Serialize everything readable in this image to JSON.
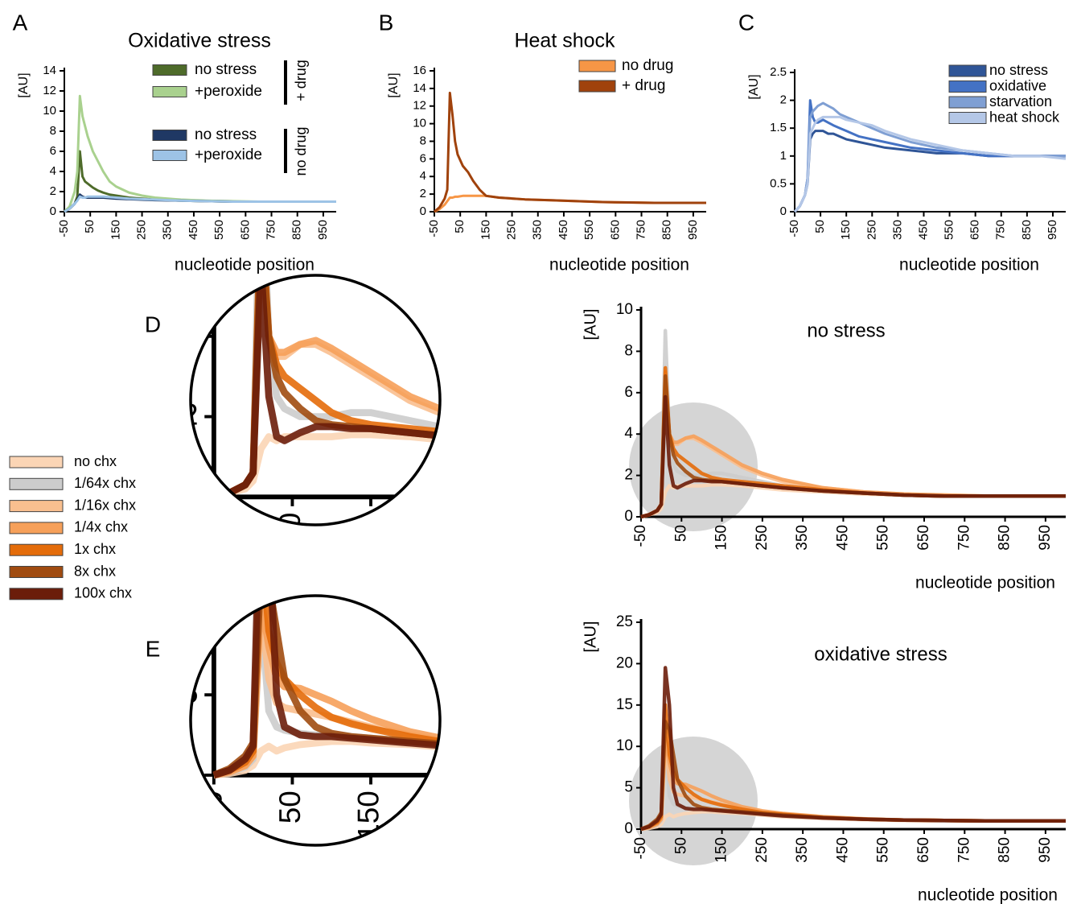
{
  "chart_data": [
    {
      "type": "line",
      "panel": "A",
      "title": "Oxidative stress",
      "ylabel": "[AU]",
      "xlabel": "nucleotide position",
      "x": [
        -50,
        -30,
        -10,
        0,
        10,
        20,
        30,
        40,
        60,
        80,
        100,
        125,
        150,
        200,
        250,
        300,
        400,
        500,
        600,
        700,
        800,
        900,
        1000
      ],
      "xlim": [
        -50,
        1000
      ],
      "xticks": [
        -50,
        50,
        150,
        250,
        350,
        450,
        550,
        650,
        750,
        850,
        950
      ],
      "ylim": [
        0,
        14
      ],
      "yticks": [
        0,
        2,
        4,
        6,
        8,
        10,
        12,
        14
      ],
      "legend_groups": [
        "+ drug",
        "no drug"
      ],
      "series": [
        {
          "name": "no stress",
          "color": "#4e6b2a",
          "values": [
            0,
            0.3,
            0.8,
            1.5,
            6,
            3.5,
            3,
            2.8,
            2.4,
            2.1,
            1.9,
            1.7,
            1.6,
            1.4,
            1.3,
            1.2,
            1.1,
            1.05,
            1,
            1,
            1,
            1,
            1
          ]
        },
        {
          "name": "+peroxide",
          "color": "#a9d18e",
          "values": [
            0,
            0.5,
            2,
            4,
            11.5,
            9.5,
            8.5,
            7.5,
            6,
            5,
            4,
            3,
            2.5,
            1.9,
            1.6,
            1.4,
            1.2,
            1.1,
            1.05,
            1,
            1,
            1,
            1
          ]
        },
        {
          "name": "no stress",
          "color": "#1f3864",
          "values": [
            0,
            0.3,
            0.8,
            1.2,
            1.7,
            1.5,
            1.4,
            1.4,
            1.4,
            1.4,
            1.4,
            1.35,
            1.3,
            1.25,
            1.2,
            1.15,
            1.1,
            1.05,
            1,
            1,
            1,
            1,
            1
          ]
        },
        {
          "name": "+peroxide",
          "color": "#9dc3e6",
          "values": [
            0,
            0.3,
            0.8,
            1.1,
            1.5,
            1.4,
            1.4,
            1.5,
            1.5,
            1.5,
            1.5,
            1.45,
            1.4,
            1.3,
            1.25,
            1.2,
            1.1,
            1.05,
            1,
            1,
            1,
            1,
            1
          ]
        }
      ]
    },
    {
      "type": "line",
      "panel": "B",
      "title": "Heat shock",
      "ylabel": "[AU]",
      "xlabel": "nucleotide position",
      "x": [
        -50,
        -30,
        -10,
        0,
        10,
        20,
        30,
        40,
        60,
        80,
        100,
        125,
        150,
        200,
        250,
        300,
        400,
        500,
        600,
        700,
        800,
        900,
        1000
      ],
      "xlim": [
        -50,
        1000
      ],
      "xticks": [
        -50,
        50,
        150,
        250,
        350,
        450,
        550,
        650,
        750,
        850,
        950
      ],
      "ylim": [
        0,
        16
      ],
      "yticks": [
        0,
        2,
        4,
        6,
        8,
        10,
        12,
        14,
        16
      ],
      "series": [
        {
          "name": "no drug",
          "color": "#f79646",
          "values": [
            0,
            0.3,
            0.8,
            1.2,
            1.6,
            1.6,
            1.7,
            1.7,
            1.8,
            1.8,
            1.8,
            1.8,
            1.8,
            1.6,
            1.5,
            1.4,
            1.3,
            1.2,
            1.1,
            1.05,
            1,
            1,
            1
          ]
        },
        {
          "name": "+ drug",
          "color": "#a0420c",
          "values": [
            0,
            0.5,
            1.5,
            2.5,
            13.5,
            11,
            8,
            6.5,
            5.2,
            4.5,
            3.5,
            2.5,
            1.8,
            1.6,
            1.5,
            1.4,
            1.3,
            1.2,
            1.1,
            1.05,
            1,
            1,
            1
          ]
        }
      ]
    },
    {
      "type": "line",
      "panel": "C",
      "ylabel": "[AU]",
      "xlabel": "nucleotide position",
      "x": [
        -50,
        -30,
        -10,
        0,
        10,
        20,
        30,
        40,
        60,
        80,
        100,
        125,
        150,
        200,
        250,
        300,
        400,
        500,
        600,
        700,
        800,
        900,
        1000
      ],
      "xlim": [
        -50,
        1000
      ],
      "xticks": [
        -50,
        50,
        150,
        250,
        350,
        450,
        550,
        650,
        750,
        850,
        950
      ],
      "ylim": [
        0,
        2.5
      ],
      "yticks": [
        0,
        0.5,
        1,
        1.5,
        2,
        2.5
      ],
      "series": [
        {
          "name": "no stress",
          "color": "#2f5597",
          "values": [
            0,
            0.1,
            0.3,
            0.5,
            1.3,
            1.4,
            1.45,
            1.45,
            1.45,
            1.4,
            1.4,
            1.35,
            1.3,
            1.25,
            1.2,
            1.15,
            1.1,
            1.05,
            1.05,
            1,
            1,
            1,
            1
          ]
        },
        {
          "name": "oxidative",
          "color": "#4472c4",
          "values": [
            0,
            0.1,
            0.3,
            0.6,
            2,
            1.7,
            1.6,
            1.6,
            1.65,
            1.6,
            1.55,
            1.5,
            1.45,
            1.35,
            1.3,
            1.25,
            1.15,
            1.1,
            1.05,
            1,
            1,
            1,
            1
          ]
        },
        {
          "name": "starvation",
          "color": "#7f9fd3",
          "values": [
            0,
            0.1,
            0.3,
            0.6,
            1.7,
            1.8,
            1.85,
            1.9,
            1.95,
            1.9,
            1.85,
            1.75,
            1.7,
            1.6,
            1.5,
            1.4,
            1.25,
            1.15,
            1.1,
            1.05,
            1,
            1,
            1
          ]
        },
        {
          "name": "heat shock",
          "color": "#b4c7e7",
          "values": [
            0,
            0.1,
            0.3,
            0.5,
            1.4,
            1.5,
            1.6,
            1.65,
            1.7,
            1.7,
            1.7,
            1.7,
            1.65,
            1.6,
            1.55,
            1.45,
            1.3,
            1.2,
            1.1,
            1.05,
            1,
            1,
            0.95
          ]
        }
      ]
    },
    {
      "type": "line",
      "panel": "D",
      "title": "no stress",
      "ylabel": "[AU]",
      "xlabel": "nucleotide position",
      "x": [
        -50,
        -30,
        -10,
        0,
        10,
        20,
        30,
        40,
        60,
        80,
        100,
        125,
        150,
        200,
        250,
        300,
        400,
        500,
        600,
        700,
        800,
        900,
        1000
      ],
      "xlim": [
        -50,
        1000
      ],
      "xticks": [
        -50,
        50,
        150,
        250,
        350,
        450,
        550,
        650,
        750,
        850,
        950
      ],
      "ylim": [
        0,
        10
      ],
      "yticks": [
        0,
        2,
        4,
        6,
        8,
        10
      ],
      "series": [
        {
          "name": "no chx",
          "color": "#fbd5b5",
          "values": [
            0,
            0.1,
            0.2,
            0.4,
            1.2,
            1.5,
            1.4,
            1.5,
            1.5,
            1.5,
            1.5,
            1.55,
            1.55,
            1.5,
            1.4,
            1.3,
            1.2,
            1.1,
            1.05,
            1,
            1,
            1,
            1
          ]
        },
        {
          "name": "1/64x chx",
          "color": "#cccccc",
          "values": [
            0,
            0.1,
            0.3,
            0.6,
            9,
            4,
            2.5,
            2.2,
            2,
            2,
            2,
            2.1,
            2.1,
            1.9,
            1.7,
            1.5,
            1.3,
            1.15,
            1.05,
            1,
            1,
            1,
            1
          ]
        },
        {
          "name": "1/16x chx",
          "color": "#f9bf8f",
          "values": [
            0,
            0.1,
            0.3,
            0.6,
            6.5,
            4,
            3.5,
            3.5,
            3.8,
            3.8,
            3.6,
            3.3,
            3,
            2.4,
            2,
            1.7,
            1.4,
            1.2,
            1.1,
            1.05,
            1,
            1,
            1
          ]
        },
        {
          "name": "1/4x chx",
          "color": "#f6a05a",
          "values": [
            0,
            0.1,
            0.3,
            0.6,
            7,
            4,
            3.6,
            3.6,
            3.8,
            3.9,
            3.7,
            3.4,
            3.1,
            2.5,
            2.1,
            1.8,
            1.4,
            1.2,
            1.1,
            1.05,
            1,
            1,
            1
          ]
        },
        {
          "name": "1x chx",
          "color": "#e46c0a",
          "values": [
            0,
            0.1,
            0.3,
            0.6,
            7.2,
            4,
            3.3,
            3,
            2.7,
            2.4,
            2.1,
            1.9,
            1.8,
            1.7,
            1.6,
            1.5,
            1.3,
            1.15,
            1.05,
            1,
            1,
            1,
            1
          ]
        },
        {
          "name": "8x chx",
          "color": "#a04b10",
          "values": [
            0,
            0.1,
            0.3,
            0.6,
            6.8,
            4,
            3,
            2.6,
            2.2,
            1.9,
            1.8,
            1.75,
            1.7,
            1.6,
            1.5,
            1.4,
            1.25,
            1.15,
            1.05,
            1,
            1,
            1,
            1
          ]
        },
        {
          "name": "100x chx",
          "color": "#6b1d0a",
          "values": [
            0,
            0.1,
            0.3,
            0.6,
            5.8,
            2.5,
            1.5,
            1.4,
            1.6,
            1.75,
            1.75,
            1.7,
            1.7,
            1.6,
            1.5,
            1.4,
            1.25,
            1.15,
            1.05,
            1,
            1,
            1,
            1
          ]
        }
      ]
    },
    {
      "type": "line",
      "panel": "E",
      "title": "oxidative stress",
      "ylabel": "[AU]",
      "xlabel": "nucleotide position",
      "x": [
        -50,
        -30,
        -10,
        0,
        10,
        20,
        30,
        40,
        60,
        80,
        100,
        125,
        150,
        200,
        250,
        300,
        400,
        500,
        600,
        700,
        800,
        900,
        1000
      ],
      "xlim": [
        -50,
        1000
      ],
      "xticks": [
        -50,
        50,
        150,
        250,
        350,
        450,
        550,
        650,
        750,
        850,
        950
      ],
      "ylim": [
        0,
        25
      ],
      "yticks": [
        0,
        5,
        10,
        15,
        20,
        25
      ],
      "series": [
        {
          "color": "#fbd5b5",
          "values": [
            0,
            0.1,
            0.3,
            0.6,
            1.5,
            1.8,
            1.5,
            1.7,
            1.9,
            2,
            2.1,
            2.1,
            2,
            1.9,
            1.7,
            1.5,
            1.3,
            1.15,
            1.05,
            1,
            1,
            1,
            1
          ]
        },
        {
          "color": "#cccccc",
          "values": [
            0,
            0.2,
            0.5,
            1,
            10,
            4,
            3,
            2.8,
            2.6,
            2.5,
            2.5,
            2.4,
            2.3,
            2.1,
            1.9,
            1.6,
            1.35,
            1.2,
            1.1,
            1,
            1,
            1,
            1
          ]
        },
        {
          "color": "#f9bf8f",
          "values": [
            0,
            0.2,
            0.6,
            1.2,
            10.5,
            6,
            4.5,
            4.2,
            4,
            3.8,
            3.6,
            3.3,
            3,
            2.5,
            2.1,
            1.8,
            1.4,
            1.2,
            1.1,
            1.05,
            1,
            1,
            1
          ]
        },
        {
          "color": "#f6a05a",
          "values": [
            0,
            0.2,
            0.6,
            1.2,
            11,
            8,
            6,
            5.5,
            5.4,
            5,
            4.6,
            4,
            3.5,
            2.7,
            2.2,
            1.9,
            1.5,
            1.25,
            1.1,
            1.05,
            1,
            1,
            1
          ]
        },
        {
          "color": "#e46c0a",
          "values": [
            0,
            0.3,
            0.8,
            1.5,
            15,
            9,
            7,
            6,
            5,
            4.2,
            3.6,
            3.2,
            2.9,
            2.4,
            2,
            1.8,
            1.4,
            1.2,
            1.1,
            1.05,
            1,
            1,
            1
          ]
        },
        {
          "color": "#a04b10",
          "values": [
            0,
            0.4,
            1.2,
            2,
            13,
            12,
            9,
            6,
            4,
            3,
            2.6,
            2.4,
            2.3,
            2.1,
            1.9,
            1.7,
            1.4,
            1.2,
            1.1,
            1.05,
            1,
            1,
            1
          ]
        },
        {
          "color": "#6b1d0a",
          "values": [
            0,
            0.3,
            1,
            1.8,
            19.5,
            15,
            5,
            3,
            2.5,
            2.4,
            2.4,
            2.3,
            2.2,
            2,
            1.8,
            1.6,
            1.35,
            1.2,
            1.1,
            1.05,
            1,
            1,
            1
          ]
        }
      ]
    }
  ]
}
